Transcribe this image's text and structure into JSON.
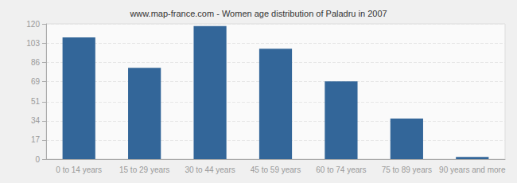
{
  "chart_data": {
    "type": "bar",
    "title": "www.map-france.com - Women age distribution of Paladru in 2007",
    "categories": [
      "0 to 14 years",
      "15 to 29 years",
      "30 to 44 years",
      "45 to 59 years",
      "60 to 74 years",
      "75 to 89 years",
      "90 years and more"
    ],
    "values": [
      108,
      81,
      118,
      98,
      69,
      36,
      2
    ],
    "color": "#336699",
    "ylim": [
      0,
      120
    ],
    "yticks": [
      0,
      17,
      34,
      51,
      69,
      86,
      103,
      120
    ],
    "grid": true
  }
}
